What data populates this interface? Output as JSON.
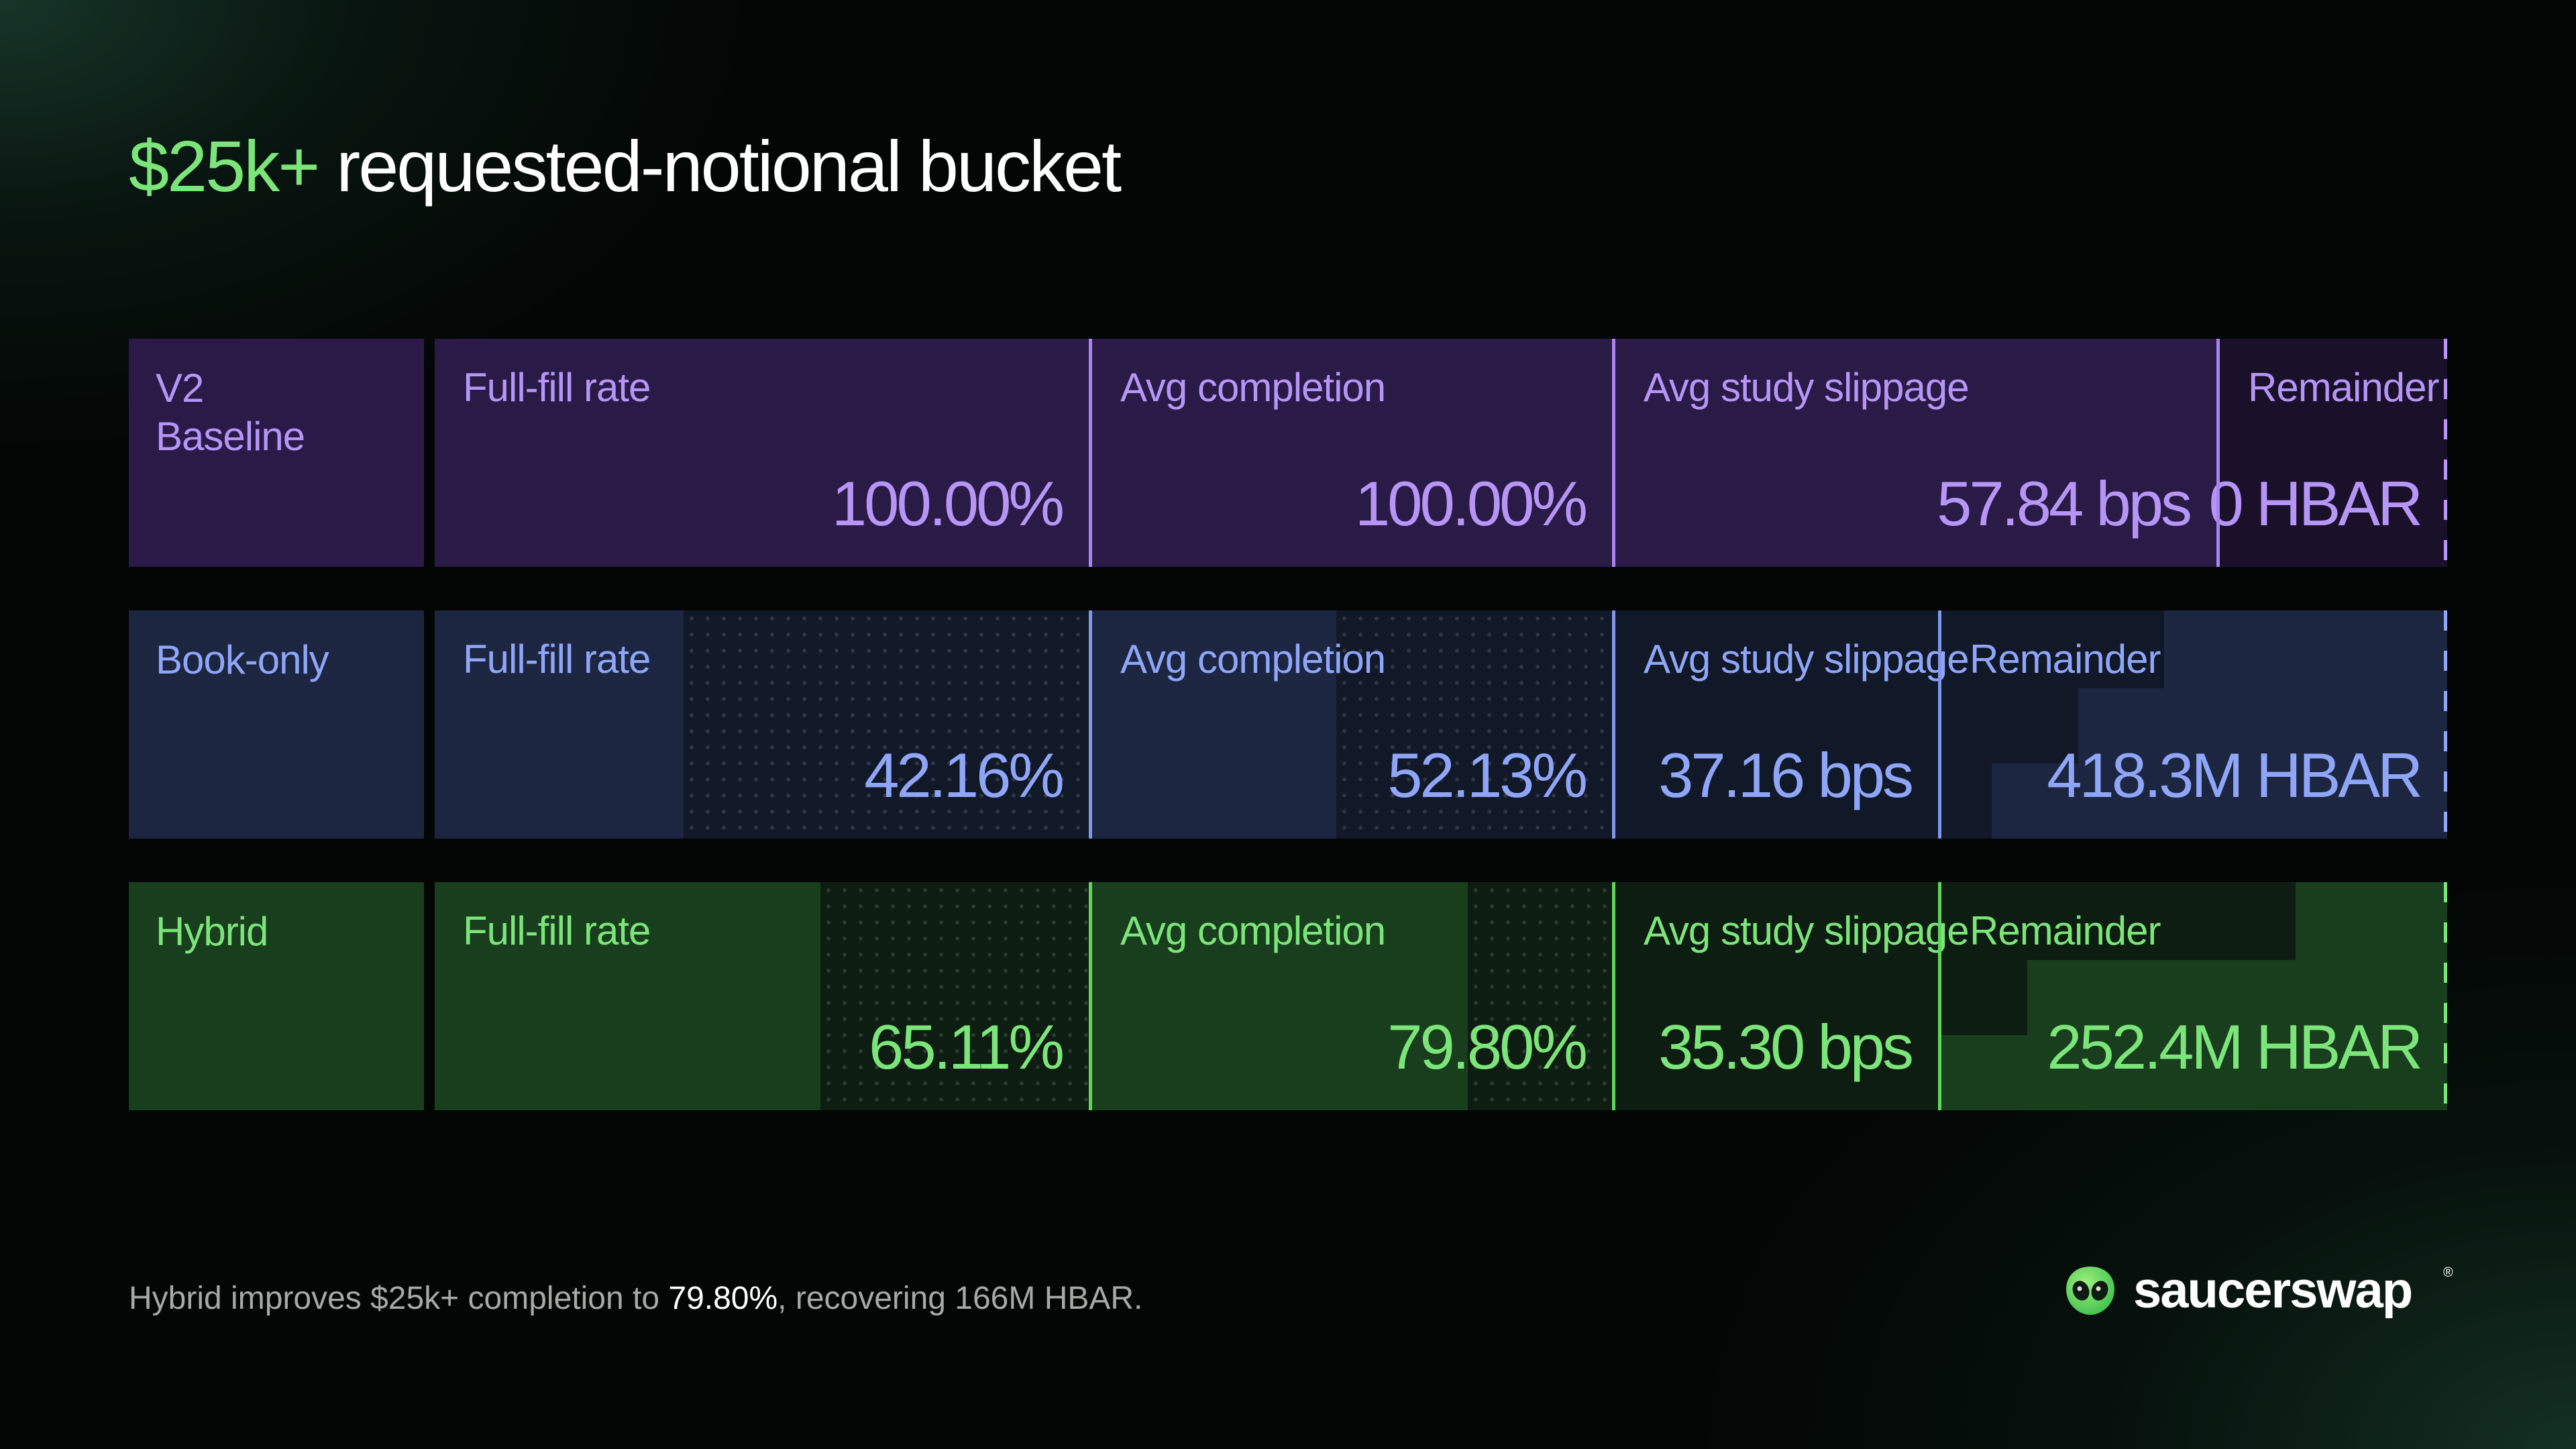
{
  "title": {
    "accent": "$25k+",
    "rest": " requested-notional bucket"
  },
  "chart_data": {
    "type": "table",
    "title": "$25k+ requested-notional bucket",
    "columns": [
      "Full-fill rate",
      "Avg completion",
      "Avg study slippage",
      "Remainder"
    ],
    "rows": [
      {
        "name": "V2 Baseline",
        "name_lines": [
          "V2",
          "Baseline"
        ],
        "full_fill_rate": 100.0,
        "avg_completion": 100.0,
        "avg_study_slippage_bps": 57.84,
        "remainder_hbar_millions": 0,
        "display": {
          "full_fill_rate": "100.00%",
          "avg_completion": "100.00%",
          "avg_study_slippage": "57.84 bps",
          "remainder": "0 HBAR"
        }
      },
      {
        "name": "Book-only",
        "name_lines": [
          "Book-only"
        ],
        "full_fill_rate": 42.16,
        "avg_completion": 52.13,
        "avg_study_slippage_bps": 37.16,
        "remainder_hbar_millions": 418.3,
        "display": {
          "full_fill_rate": "42.16%",
          "avg_completion": "52.13%",
          "avg_study_slippage": "37.16 bps",
          "remainder": "418.3M HBAR"
        }
      },
      {
        "name": "Hybrid",
        "name_lines": [
          "Hybrid"
        ],
        "full_fill_rate": 65.11,
        "avg_completion": 79.8,
        "avg_study_slippage_bps": 35.3,
        "remainder_hbar_millions": 252.4,
        "display": {
          "full_fill_rate": "65.11%",
          "avg_completion": "79.80%",
          "avg_study_slippage": "35.30 bps",
          "remainder": "252.4M HBAR"
        }
      }
    ]
  },
  "colors": {
    "v2": "#b596f7",
    "book_only": "#8fa6f8",
    "hybrid": "#7ce57a"
  },
  "footnote": {
    "before": "Hybrid improves $25k+ completion to ",
    "highlight": "79.80%",
    "after": ", recovering 166M HBAR."
  },
  "brand": {
    "icon": "alien-logo-icon",
    "name": "saucerswap",
    "registered": "®"
  }
}
